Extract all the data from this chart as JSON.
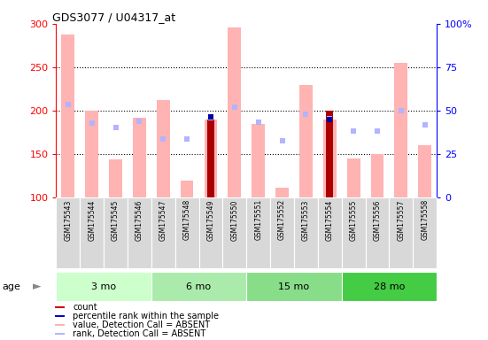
{
  "title": "GDS3077 / U04317_at",
  "samples": [
    "GSM175543",
    "GSM175544",
    "GSM175545",
    "GSM175546",
    "GSM175547",
    "GSM175548",
    "GSM175549",
    "GSM175550",
    "GSM175551",
    "GSM175552",
    "GSM175553",
    "GSM175554",
    "GSM175555",
    "GSM175556",
    "GSM175557",
    "GSM175558"
  ],
  "value_absent": [
    288,
    200,
    144,
    192,
    212,
    119,
    190,
    296,
    184,
    111,
    229,
    190,
    145,
    150,
    255,
    160
  ],
  "rank_absent": [
    207,
    185,
    180,
    188,
    167,
    167,
    192,
    204,
    187,
    165,
    196,
    191,
    176,
    176,
    200,
    183
  ],
  "count_present": [
    null,
    null,
    null,
    null,
    null,
    null,
    190,
    null,
    null,
    null,
    null,
    200,
    null,
    null,
    null,
    null
  ],
  "percentile_present": [
    null,
    null,
    null,
    null,
    null,
    null,
    193,
    null,
    null,
    null,
    null,
    190,
    null,
    null,
    null,
    null
  ],
  "groups": [
    {
      "label": "3 mo",
      "start": 0,
      "end": 4,
      "color": "#ccffcc"
    },
    {
      "label": "6 mo",
      "start": 4,
      "end": 8,
      "color": "#aaeaaa"
    },
    {
      "label": "15 mo",
      "start": 8,
      "end": 12,
      "color": "#88dd88"
    },
    {
      "label": "28 mo",
      "start": 12,
      "end": 16,
      "color": "#44cc44"
    }
  ],
  "ylim_left": [
    100,
    300
  ],
  "ylim_right": [
    0,
    100
  ],
  "yticks_left": [
    100,
    150,
    200,
    250,
    300
  ],
  "yticks_right": [
    0,
    25,
    50,
    75,
    100
  ],
  "yticklabels_right": [
    "0",
    "25",
    "50",
    "75",
    "100%"
  ],
  "color_value_absent": "#ffb3b3",
  "color_rank_absent": "#b3b3ff",
  "color_count": "#aa0000",
  "color_percentile": "#0000aa",
  "plot_bg": "#ffffff",
  "sample_column_bg": "#d8d8d8",
  "age_label": "age",
  "legend": [
    {
      "color": "#cc0000",
      "label": "count"
    },
    {
      "color": "#0000cc",
      "label": "percentile rank within the sample"
    },
    {
      "color": "#ffb3b3",
      "label": "value, Detection Call = ABSENT"
    },
    {
      "color": "#b3b3ff",
      "label": "rank, Detection Call = ABSENT"
    }
  ]
}
